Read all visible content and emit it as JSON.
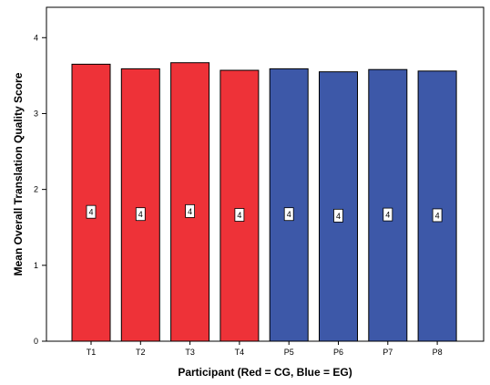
{
  "chart_data": {
    "type": "bar",
    "categories": [
      "T1",
      "T2",
      "T3",
      "T4",
      "P5",
      "P6",
      "P7",
      "P8"
    ],
    "values": [
      3.65,
      3.59,
      3.67,
      3.57,
      3.59,
      3.55,
      3.58,
      3.56
    ],
    "data_labels": [
      "4",
      "4",
      "4",
      "4",
      "4",
      "4",
      "4",
      "4"
    ],
    "bar_colors": [
      "#EE3238",
      "#EE3238",
      "#EE3238",
      "#EE3238",
      "#3D58A8",
      "#3D58A8",
      "#3D58A8",
      "#3D58A8"
    ],
    "xlabel": "Participant (Red = CG, Blue = EG)",
    "ylabel": "Mean Overall Translation Quality Score",
    "ylim": [
      0,
      4.4
    ],
    "yticks": [
      "0",
      "1",
      "2",
      "3",
      "4"
    ],
    "grid": false,
    "legend": "none"
  }
}
